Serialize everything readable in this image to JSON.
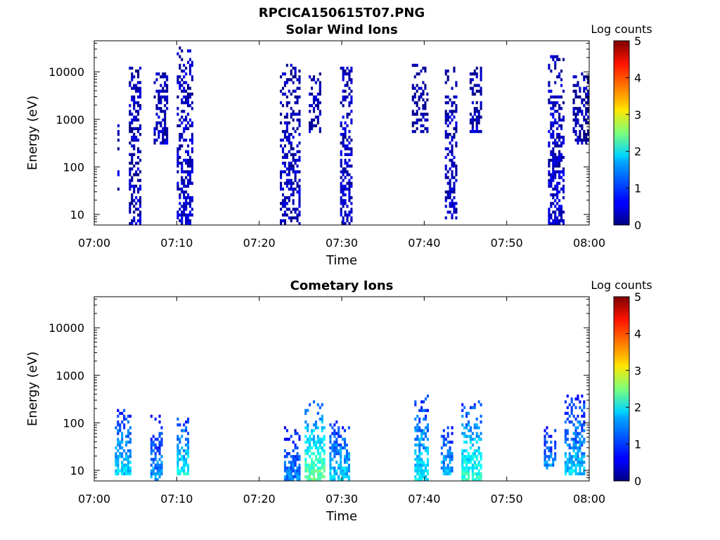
{
  "figure_title": "RPCICA150615T07.PNG",
  "colorbar_ticks": [
    "0",
    "1",
    "2",
    "3",
    "4",
    "5"
  ],
  "chart_data": [
    {
      "type": "heatmap",
      "title": "Solar Wind Ions",
      "xlabel": "Time",
      "ylabel": "Energy (eV)",
      "x_ticks": [
        "07:00",
        "07:10",
        "07:20",
        "07:30",
        "07:40",
        "07:50",
        "08:00"
      ],
      "y_ticks": [
        "10",
        "100",
        "1000",
        "10000"
      ],
      "y_scale": "log",
      "ylim": [
        6,
        45000
      ],
      "xlim_minutes": [
        0,
        60
      ],
      "colorbar_label": "Log counts",
      "colorbar_range": [
        0,
        5
      ],
      "colormap": "jet",
      "bursts": [
        {
          "t_start": 2.8,
          "t_end": 3.0,
          "e_min": 30,
          "e_max": 1000,
          "level": 0.3
        },
        {
          "t_start": 4.2,
          "t_end": 5.6,
          "e_min": 6,
          "e_max": 15000,
          "level": 0.2
        },
        {
          "t_start": 7.2,
          "t_end": 8.8,
          "e_min": 300,
          "e_max": 10000,
          "level": 0.2
        },
        {
          "t_start": 10.0,
          "t_end": 11.8,
          "e_min": 6,
          "e_max": 35000,
          "level": 0.3
        },
        {
          "t_start": 22.5,
          "t_end": 24.8,
          "e_min": 6,
          "e_max": 15000,
          "level": 0.2
        },
        {
          "t_start": 26.0,
          "t_end": 27.5,
          "e_min": 500,
          "e_max": 10000,
          "level": 0.1
        },
        {
          "t_start": 29.8,
          "t_end": 31.2,
          "e_min": 6,
          "e_max": 12000,
          "level": 0.3
        },
        {
          "t_start": 38.5,
          "t_end": 40.5,
          "e_min": 500,
          "e_max": 15000,
          "level": 0.1
        },
        {
          "t_start": 42.5,
          "t_end": 44.0,
          "e_min": 8,
          "e_max": 12000,
          "level": 0.2
        },
        {
          "t_start": 45.5,
          "t_end": 47.0,
          "e_min": 500,
          "e_max": 12000,
          "level": 0.1
        },
        {
          "t_start": 55.0,
          "t_end": 56.8,
          "e_min": 6,
          "e_max": 22000,
          "level": 0.3
        },
        {
          "t_start": 58.0,
          "t_end": 60.0,
          "e_min": 300,
          "e_max": 10000,
          "level": 0.1
        }
      ]
    },
    {
      "type": "heatmap",
      "title": "Cometary Ions",
      "xlabel": "Time",
      "ylabel": "Energy (eV)",
      "x_ticks": [
        "07:00",
        "07:10",
        "07:20",
        "07:30",
        "07:40",
        "07:50",
        "08:00"
      ],
      "y_ticks": [
        "10",
        "100",
        "1000",
        "10000"
      ],
      "y_scale": "log",
      "ylim": [
        6,
        45000
      ],
      "xlim_minutes": [
        0,
        60
      ],
      "colorbar_label": "Log counts",
      "colorbar_range": [
        0,
        5
      ],
      "colormap": "jet",
      "bursts": [
        {
          "t_start": 2.5,
          "t_end": 4.5,
          "e_min": 8,
          "e_max": 200,
          "level": 1.6
        },
        {
          "t_start": 6.8,
          "t_end": 8.2,
          "e_min": 6,
          "e_max": 150,
          "level": 1.3
        },
        {
          "t_start": 10.0,
          "t_end": 11.5,
          "e_min": 8,
          "e_max": 150,
          "level": 1.8
        },
        {
          "t_start": 23.0,
          "t_end": 25.0,
          "e_min": 6,
          "e_max": 80,
          "level": 1.2
        },
        {
          "t_start": 25.5,
          "t_end": 28.0,
          "e_min": 6,
          "e_max": 300,
          "level": 2.3
        },
        {
          "t_start": 28.5,
          "t_end": 31.0,
          "e_min": 6,
          "e_max": 120,
          "level": 1.6
        },
        {
          "t_start": 38.8,
          "t_end": 40.5,
          "e_min": 6,
          "e_max": 400,
          "level": 1.7
        },
        {
          "t_start": 42.0,
          "t_end": 43.5,
          "e_min": 8,
          "e_max": 120,
          "level": 1.4
        },
        {
          "t_start": 44.5,
          "t_end": 47.0,
          "e_min": 6,
          "e_max": 300,
          "level": 2.0
        },
        {
          "t_start": 54.5,
          "t_end": 56.0,
          "e_min": 10,
          "e_max": 80,
          "level": 1.3
        },
        {
          "t_start": 57.0,
          "t_end": 59.5,
          "e_min": 8,
          "e_max": 400,
          "level": 1.5
        }
      ]
    }
  ]
}
